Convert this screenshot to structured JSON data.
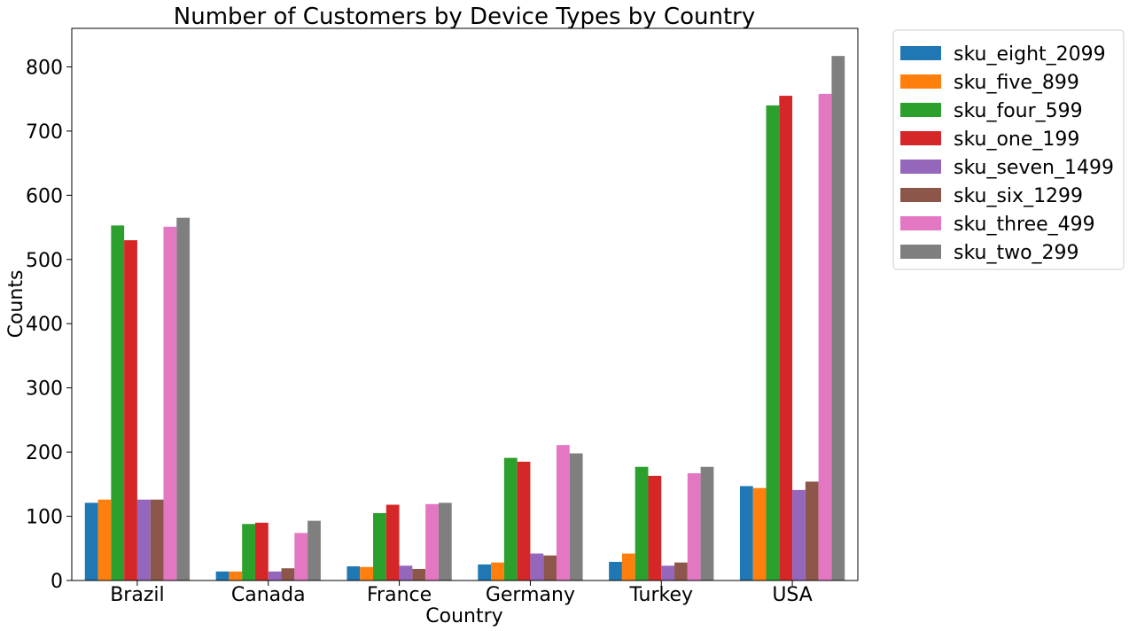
{
  "chart_data": {
    "type": "bar",
    "title": "Number of Customers by Device Types by Country",
    "xlabel": "Country",
    "ylabel": "Counts",
    "categories": [
      "Brazil",
      "Canada",
      "France",
      "Germany",
      "Turkey",
      "USA"
    ],
    "ylim": [
      0,
      860
    ],
    "yticks": [
      0,
      100,
      200,
      300,
      400,
      500,
      600,
      700,
      800
    ],
    "grid": false,
    "legend_position": "upper-left-outside",
    "series": [
      {
        "name": "sku_eight_2099",
        "color": "#1f77b4",
        "values": [
          121,
          14,
          22,
          25,
          29,
          147
        ]
      },
      {
        "name": "sku_five_899",
        "color": "#ff7f0e",
        "values": [
          126,
          14,
          21,
          28,
          42,
          144
        ]
      },
      {
        "name": "sku_four_599",
        "color": "#2ca02c",
        "values": [
          553,
          88,
          105,
          191,
          177,
          740
        ]
      },
      {
        "name": "sku_one_199",
        "color": "#d62728",
        "values": [
          530,
          90,
          118,
          185,
          163,
          755
        ]
      },
      {
        "name": "sku_seven_1499",
        "color": "#9467bd",
        "values": [
          126,
          14,
          23,
          42,
          23,
          141
        ]
      },
      {
        "name": "sku_six_1299",
        "color": "#8c564b",
        "values": [
          126,
          19,
          18,
          39,
          28,
          154
        ]
      },
      {
        "name": "sku_three_499",
        "color": "#e377c2",
        "values": [
          551,
          74,
          119,
          211,
          167,
          758
        ]
      },
      {
        "name": "sku_two_299",
        "color": "#7f7f7f",
        "values": [
          565,
          93,
          121,
          198,
          177,
          817
        ]
      }
    ]
  }
}
